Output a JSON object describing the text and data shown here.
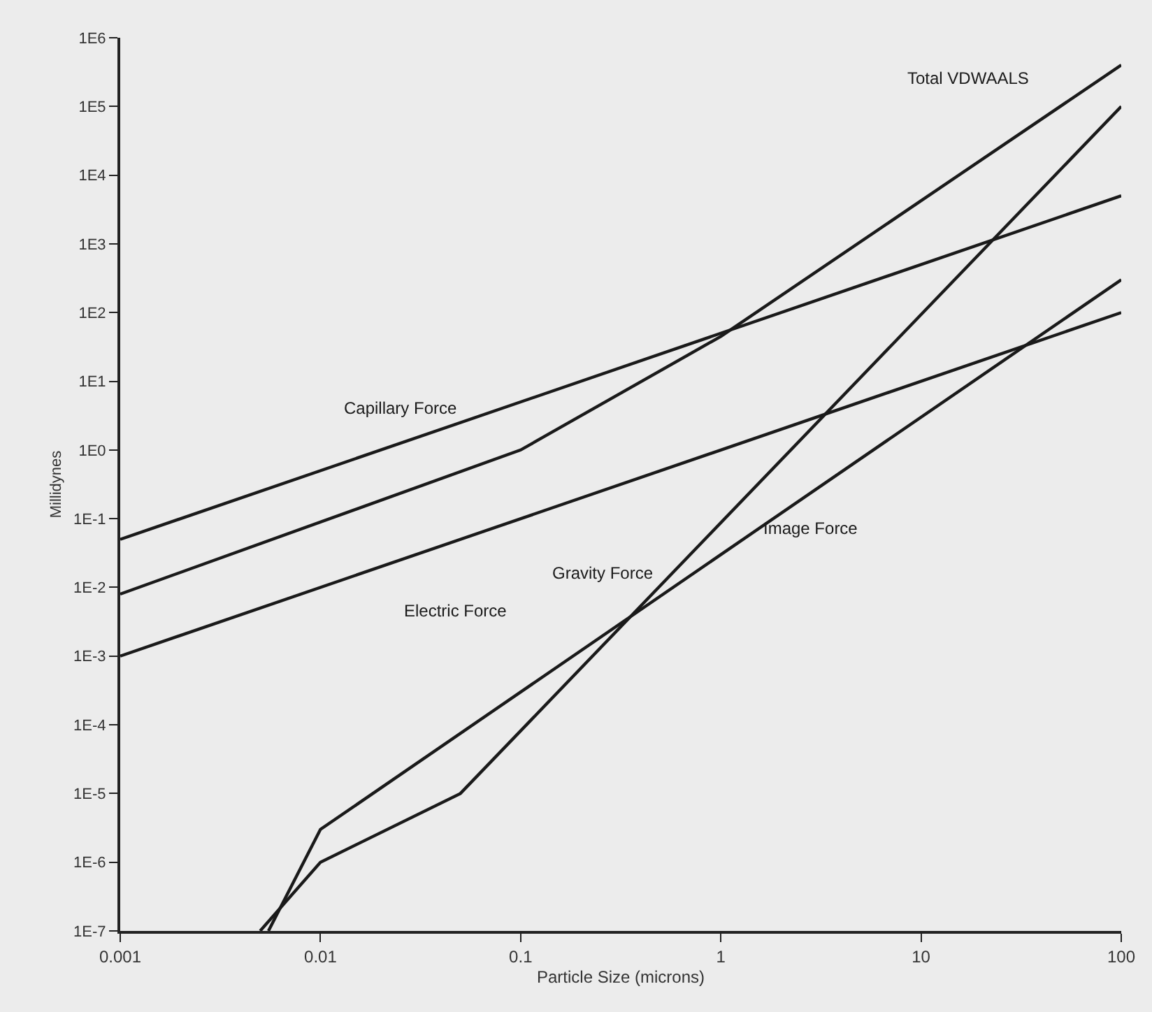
{
  "chart_data": {
    "type": "line",
    "xlabel": "Particle Size (microns)",
    "ylabel": "Millidynes",
    "log": "xy",
    "grid": false,
    "legend": false,
    "marker": "none",
    "line_style": "solid",
    "xlim": [
      0.001,
      100
    ],
    "xticks": [
      0.001,
      0.01,
      0.1,
      1,
      10,
      100
    ],
    "ylim": [
      1e-07,
      1000000.0
    ],
    "yticks": [
      {
        "value": 1e-07,
        "label": "1E-7"
      },
      {
        "value": 1e-06,
        "label": "1E-6"
      },
      {
        "value": 1e-05,
        "label": "1E-5"
      },
      {
        "value": 0.0001,
        "label": "1E-4"
      },
      {
        "value": 0.001,
        "label": "1E-3"
      },
      {
        "value": 0.01,
        "label": "1E-2"
      },
      {
        "value": 0.1,
        "label": "1E-1"
      },
      {
        "value": 1,
        "label": "1E0"
      },
      {
        "value": 10,
        "label": "1E1"
      },
      {
        "value": 100,
        "label": "1E2"
      },
      {
        "value": 1000,
        "label": "1E3"
      },
      {
        "value": 10000,
        "label": "1E4"
      },
      {
        "value": 100000,
        "label": "1E5"
      },
      {
        "value": 1000000,
        "label": "1E6"
      }
    ],
    "series": [
      {
        "name": "Total VDWAALS",
        "color": "#1a1a1a",
        "x": [
          0.001,
          0.1,
          1,
          100
        ],
        "values": [
          0.008,
          1,
          45,
          400000
        ]
      },
      {
        "name": "Capillary Force",
        "color": "#1a1a1a",
        "x": [
          0.001,
          100
        ],
        "values": [
          0.05,
          5000
        ]
      },
      {
        "name": "Electric Force",
        "color": "#1a1a1a",
        "x": [
          0.001,
          100
        ],
        "values": [
          0.001,
          100
        ]
      },
      {
        "name": "Gravity Force",
        "color": "#1a1a1a",
        "x": [
          0.005,
          0.01,
          0.05,
          100
        ],
        "values": [
          1e-07,
          1e-06,
          1e-05,
          100000
        ]
      },
      {
        "name": "Image Force",
        "color": "#1a1a1a",
        "x": [
          0.0055,
          0.01,
          100
        ],
        "values": [
          1e-07,
          3e-06,
          300
        ]
      }
    ]
  }
}
